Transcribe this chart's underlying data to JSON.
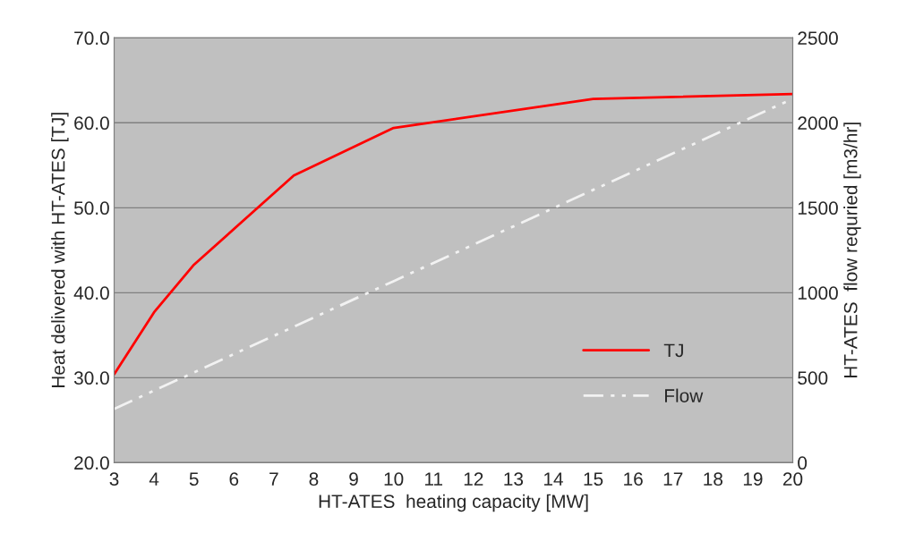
{
  "chart_data": {
    "type": "line",
    "xlabel": "HT-ATES  heating capacity [MW]",
    "ylabel": "Heat delivered with HT-ATES [TJ]",
    "y2label": "HT-ATES  flow requried [m3/hr]",
    "x": [
      3,
      4,
      5,
      7.5,
      10,
      15,
      20
    ],
    "series": [
      {
        "name": "TJ",
        "color": "#ff0000",
        "values": [
          30.4,
          37.7,
          43.3,
          53.8,
          59.4,
          62.8,
          63.4
        ],
        "line_style": "solid"
      },
      {
        "name": "Flow",
        "color": "#f2f2f2",
        "values": [
          316,
          424,
          531,
          800,
          1068,
          1605,
          2142
        ],
        "axis": "y2",
        "line_style": "dashdot"
      }
    ],
    "xlim": [
      3,
      20
    ],
    "xticks": [
      3,
      4,
      5,
      6,
      7,
      8,
      9,
      10,
      11,
      12,
      13,
      14,
      15,
      16,
      17,
      18,
      19,
      20
    ],
    "ylim": [
      20,
      70
    ],
    "yticks": [
      {
        "value": 20,
        "label": "20.0"
      },
      {
        "value": 30,
        "label": "30.0"
      },
      {
        "value": 40,
        "label": "40.0"
      },
      {
        "value": 50,
        "label": "50.0"
      },
      {
        "value": 60,
        "label": "60.0"
      },
      {
        "value": 70,
        "label": "70.0"
      }
    ],
    "y2lim": [
      0,
      2500
    ],
    "y2ticks": [
      0,
      500,
      1000,
      1500,
      2000,
      2500
    ],
    "grid": "y",
    "legend": "bottom right",
    "marker": "none"
  }
}
